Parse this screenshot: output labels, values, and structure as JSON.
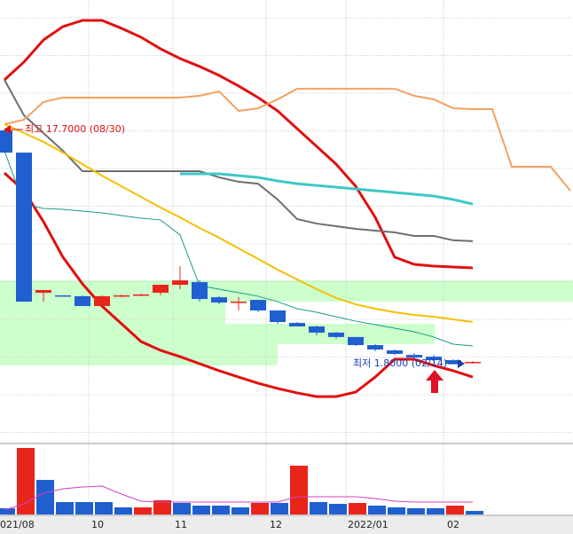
{
  "chart_data": {
    "type": "candlestick",
    "x_labels": [
      "021/08",
      "10",
      "11",
      "12",
      "2022/01",
      "02"
    ],
    "annotations": {
      "high": "최고 17.7000 (08/30)",
      "low": "최저 1.8000 (02/14)"
    },
    "ylim": [
      -3.64,
      26.59
    ],
    "up_color": "#e8251a",
    "down_color": "#1f5fd0",
    "open": [
      17.7,
      16.19,
      6.64,
      6.46,
      6.4,
      5.73,
      6.4,
      6.46,
      6.64,
      7.18,
      7.36,
      6.33,
      5.97,
      6.15,
      5.43,
      4.58,
      4.34,
      3.92,
      3.62,
      3.07,
      2.71,
      2.4,
      2.28,
      2.04,
      1.86
    ],
    "high": [
      17.7,
      16.19,
      6.82,
      6.46,
      6.46,
      6.46,
      6.52,
      6.58,
      7.18,
      8.45,
      7.48,
      6.4,
      6.33,
      6.15,
      5.43,
      4.64,
      4.4,
      3.98,
      3.62,
      3.13,
      2.77,
      2.52,
      2.4,
      2.1,
      1.98
    ],
    "low": [
      16.19,
      6.03,
      6.03,
      6.4,
      5.73,
      5.73,
      6.34,
      6.4,
      6.46,
      6.88,
      6.03,
      5.85,
      5.43,
      5.31,
      4.52,
      4.34,
      3.74,
      3.5,
      3.01,
      2.65,
      2.4,
      2.16,
      1.98,
      1.8,
      1.8
    ],
    "close": [
      16.19,
      6.03,
      6.82,
      6.4,
      5.73,
      6.4,
      6.46,
      6.52,
      7.18,
      7.48,
      6.21,
      5.97,
      6.03,
      5.43,
      4.64,
      4.34,
      3.92,
      3.62,
      3.07,
      2.77,
      2.47,
      2.22,
      2.04,
      1.8,
      1.92
    ],
    "series": [
      {
        "color": "#e01010",
        "width": 3,
        "values": [
          21.15,
          22.36,
          23.87,
          24.78,
          25.2,
          25.2,
          24.66,
          24.05,
          23.26,
          22.6,
          22.06,
          21.45,
          20.73,
          19.94,
          19.03,
          17.82,
          16.61,
          15.4,
          13.89,
          11.78,
          9.06,
          8.57,
          8.45,
          8.39,
          8.33
        ]
      },
      {
        "color": "#e01010",
        "width": 3,
        "values": [
          14.8,
          13.59,
          11.48,
          9.06,
          7.24,
          5.73,
          4.52,
          3.31,
          2.71,
          2.28,
          1.8,
          1.32,
          0.89,
          0.47,
          0.11,
          -0.19,
          -0.44,
          -0.44,
          -0.13,
          0.89,
          2.1,
          2.1,
          1.68,
          1.32,
          0.89
        ]
      },
      {
        "color": "#6e6e6e",
        "width": 2,
        "values": [
          21.15,
          18.73,
          17.52,
          16.31,
          14.92,
          14.92,
          14.92,
          14.92,
          14.92,
          14.92,
          14.92,
          14.5,
          14.2,
          14.07,
          12.99,
          11.66,
          11.35,
          11.17,
          10.99,
          10.87,
          10.75,
          10.51,
          10.51,
          10.21,
          10.15
        ]
      },
      {
        "color": "#f4a060",
        "width": 2,
        "values": [
          18.13,
          18.43,
          19.64,
          19.94,
          19.94,
          19.94,
          19.94,
          19.94,
          19.94,
          19.94,
          20.06,
          20.36,
          19.03,
          19.21,
          19.82,
          20.54,
          20.54,
          20.54,
          20.54,
          20.54,
          20.54,
          20.06,
          19.82,
          19.21,
          19.15,
          19.15,
          15.22,
          15.22,
          15.22,
          13.59
        ]
      },
      {
        "color": "#3cc8c8",
        "width": 3,
        "values": [
          null,
          null,
          null,
          null,
          null,
          null,
          null,
          null,
          null,
          14.74,
          14.74,
          14.74,
          14.62,
          14.5,
          14.26,
          14.07,
          13.95,
          13.83,
          13.71,
          13.59,
          13.47,
          13.35,
          13.23,
          12.99,
          12.68
        ]
      },
      {
        "color": "#f5c000",
        "width": 2,
        "values": [
          18.13,
          17.52,
          16.92,
          16.19,
          15.4,
          14.62,
          13.89,
          13.17,
          12.44,
          11.78,
          11.05,
          10.39,
          9.66,
          8.94,
          8.21,
          7.55,
          6.88,
          6.28,
          5.85,
          5.55,
          5.31,
          5.13,
          5.0,
          4.82,
          4.64
        ]
      },
      {
        "color": "#1a9a8a",
        "width": 1,
        "values": [
          16.31,
          12.68,
          12.38,
          12.32,
          12.2,
          12.08,
          11.9,
          11.72,
          11.6,
          10.57,
          7.12,
          6.88,
          6.64,
          6.4,
          6.03,
          5.55,
          5.31,
          5.0,
          4.7,
          4.46,
          4.22,
          3.98,
          3.62,
          3.13,
          3.01
        ]
      }
    ],
    "volume": {
      "ylim": [
        0,
        80
      ],
      "values": [
        7,
        75,
        39,
        14,
        14,
        14,
        8,
        8,
        16,
        13,
        10,
        10,
        8,
        13,
        13,
        55,
        14,
        12,
        13,
        10,
        8,
        7,
        7,
        10,
        4
      ],
      "colors": [
        "#1f5fd0",
        "#e8251a",
        "#1f5fd0",
        "#1f5fd0",
        "#1f5fd0",
        "#1f5fd0",
        "#1f5fd0",
        "#e8251a",
        "#e8251a",
        "#1f5fd0",
        "#1f5fd0",
        "#1f5fd0",
        "#1f5fd0",
        "#e8251a",
        "#1f5fd0",
        "#e8251a",
        "#1f5fd0",
        "#1f5fd0",
        "#e8251a",
        "#1f5fd0",
        "#1f5fd0",
        "#1f5fd0",
        "#1f5fd0",
        "#e8251a",
        "#1f5fd0"
      ],
      "ma": {
        "color": "#d040c0",
        "values": [
          5,
          12,
          24,
          29,
          31,
          32,
          23,
          15,
          14,
          14,
          14,
          14,
          14,
          14,
          14,
          20,
          20,
          20,
          20,
          18,
          15,
          14,
          14,
          14,
          14
        ]
      }
    }
  }
}
